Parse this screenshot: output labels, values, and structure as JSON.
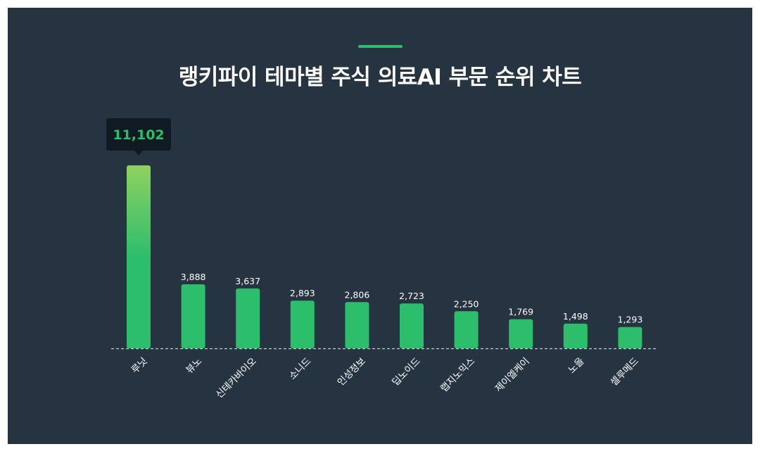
{
  "title": "랭키파이 테마별 주식 의료AI 부문 순위 차트",
  "colors": {
    "background": "#263340",
    "bar": "#2dbe6c",
    "bar_top_highlight": "#8fd160",
    "tooltip_bg": "#0f1a22",
    "tooltip_text": "#2dbe6c"
  },
  "chart_data": {
    "type": "bar",
    "title": "랭키파이 테마별 주식 의료AI 부문 순위 차트",
    "categories": [
      "루닛",
      "뷰노",
      "신테카바이오",
      "소니드",
      "인성정보",
      "딥노이드",
      "랩지노믹스",
      "제이엘케이",
      "노을",
      "셀루메드"
    ],
    "values": [
      11102,
      3888,
      3637,
      2893,
      2806,
      2723,
      2250,
      1769,
      1498,
      1293
    ],
    "value_labels": [
      "11,102",
      "3,888",
      "3,637",
      "2,893",
      "2,806",
      "2,723",
      "2,250",
      "1,769",
      "1,498",
      "1,293"
    ],
    "highlight_index": 0,
    "xlabel": "",
    "ylabel": "",
    "ylim": [
      0,
      11102
    ],
    "grid": false,
    "legend": "none"
  }
}
